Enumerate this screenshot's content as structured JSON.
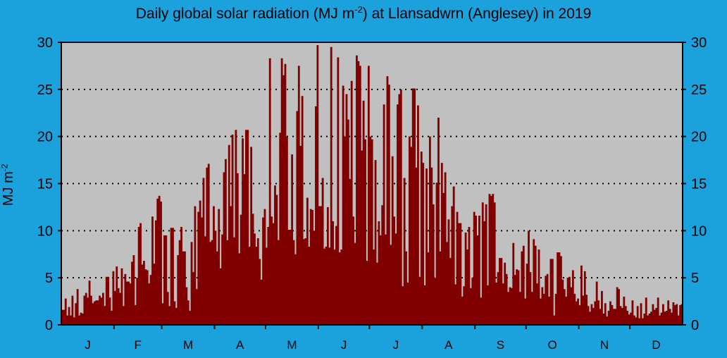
{
  "chart_data": {
    "type": "bar",
    "title_main": "Daily global solar radiation (MJ m",
    "title_sup": "-2",
    "title_rest": ") at Llansadwrn (Anglesey) in 2019",
    "ylabel_main": "MJ m",
    "ylabel_sup": "-2",
    "ylim": [
      0,
      30
    ],
    "yticks": [
      0,
      5,
      10,
      15,
      20,
      25,
      30
    ],
    "grid": "horizontal dotted",
    "months": [
      "J",
      "F",
      "M",
      "A",
      "M",
      "J",
      "J",
      "A",
      "S",
      "O",
      "N",
      "D"
    ],
    "month_days": [
      31,
      28,
      31,
      30,
      31,
      30,
      31,
      31,
      30,
      31,
      30,
      31
    ],
    "bar_color": "#800000",
    "plot_bg": "#c0c0c0",
    "page_bg": "#1ba1db",
    "values": [
      1.6,
      1.6,
      2.8,
      1.0,
      1.9,
      1.0,
      3.1,
      0.8,
      2.3,
      3.8,
      1.0,
      1.3,
      1.2,
      3.1,
      3.4,
      2.9,
      4.7,
      3.1,
      2.3,
      2.5,
      2.6,
      2.6,
      3.1,
      2.9,
      3.4,
      2.0,
      5.1,
      5.1,
      2.9,
      1.5,
      5.7,
      3.6,
      6.2,
      3.9,
      3.4,
      6.0,
      2.0,
      5.4,
      4.6,
      4.6,
      4.4,
      6.7,
      7.4,
      2.1,
      5.0,
      10.4,
      10.8,
      6.4,
      6.8,
      5.9,
      5.8,
      4.4,
      5.3,
      11.5,
      6.5,
      11.1,
      13.4,
      13.7,
      13.1,
      2.3,
      9.5,
      9.5,
      3.5,
      2.0,
      10.3,
      10.3,
      2.5,
      1.8,
      7.4,
      9.0,
      10.4,
      7.8,
      7.8,
      4.0,
      2.6,
      1.5,
      8.8,
      5.6,
      12.6,
      3.8,
      12.0,
      13.2,
      11.4,
      15.6,
      9.4,
      16.7,
      17.1,
      8.8,
      9.0,
      12.6,
      10.0,
      7.8,
      12.3,
      6.0,
      9.6,
      16.2,
      17.6,
      9.0,
      19.1,
      12.6,
      20.2,
      9.3,
      20.7,
      16.1,
      7.6,
      11.7,
      19.8,
      16.0,
      20.7,
      20.7,
      8.3,
      18.9,
      11.8,
      9.7,
      8.3,
      9.2,
      7.0,
      4.8,
      11.4,
      12.3,
      8.2,
      10.4,
      28.3,
      11.5,
      10.8,
      14.8,
      13.8,
      9.0,
      20.4,
      28.3,
      26.5,
      27.7,
      20.0,
      10.1,
      10.1,
      18.1,
      9.0,
      7.5,
      22.7,
      27.5,
      19.0,
      24.3,
      9.1,
      9.2,
      13.5,
      8.3,
      12.3,
      12.2,
      10.0,
      23.2,
      29.7,
      12.6,
      12.6,
      15.6,
      8.1,
      8.3,
      12.5,
      8.2,
      29.5,
      11.0,
      8.0,
      10.5,
      28.4,
      7.7,
      8.0,
      25.4,
      20.0,
      24.5,
      21.8,
      15.5,
      25.9,
      11.5,
      8.7,
      28.6,
      28.0,
      27.5,
      18.5,
      23.8,
      19.7,
      6.8,
      27.5,
      20.0,
      19.7,
      8.0,
      17.5,
      6.6,
      11.0,
      9.5,
      12.7,
      23.4,
      9.6,
      26.4,
      25.5,
      8.5,
      17.9,
      11.5,
      9.7,
      23.4,
      24.5,
      25.0,
      4.1,
      15.6,
      7.8,
      4.5,
      20.0,
      18.9,
      25.1,
      25.1,
      16.7,
      23.3,
      5.1,
      18.4,
      17.2,
      4.2,
      16.6,
      7.7,
      20.0,
      16.7,
      12.8,
      5.0,
      15.1,
      22.0,
      7.8,
      17.2,
      14.0,
      16.2,
      8.8,
      11.2,
      7.1,
      12.6,
      14.7,
      4.3,
      12.0,
      10.8,
      10.8,
      3.0,
      4.1,
      9.8,
      8.0,
      10.4,
      3.9,
      5.0,
      12.0,
      11.6,
      9.5,
      11.6,
      2.9,
      13.0,
      11.0,
      12.8,
      4.2,
      13.9,
      13.7,
      13.9,
      13.0,
      4.5,
      5.6,
      7.1,
      7.1,
      4.4,
      6.6,
      5.4,
      3.5,
      4.0,
      3.9,
      8.7,
      5.3,
      5.9,
      5.8,
      3.5,
      7.8,
      8.4,
      2.8,
      6.5,
      10.0,
      5.6,
      3.5,
      9.1,
      8.4,
      4.4,
      8.0,
      2.8,
      4.0,
      3.3,
      5.2,
      5.4,
      3.0,
      7.0,
      7.0,
      1.0,
      3.3,
      7.7,
      7.7,
      7.3,
      4.8,
      3.8,
      3.0,
      5.0,
      5.1,
      4.0,
      5.8,
      3.3,
      2.5,
      2.8,
      2.1,
      6.3,
      3.1,
      5.7,
      3.2,
      2.0,
      1.4,
      2.2,
      1.8,
      2.5,
      4.6,
      2.6,
      1.7,
      3.6,
      1.2,
      2.3,
      0.9,
      1.5,
      2.5,
      2.1,
      1.7,
      1.7,
      4.0,
      3.8,
      2.0,
      1.8,
      3.0,
      2.0,
      1.5,
      1.1,
      1.3,
      2.6,
      1.0,
      0.8,
      2.0,
      0.7,
      2.3,
      0.7,
      1.2,
      2.9,
      1.0,
      1.2,
      1.4,
      2.2,
      1.6,
      1.8,
      2.9,
      1.0,
      1.3,
      2.2,
      1.4,
      1.5,
      2.6,
      1.7,
      1.3,
      2.4,
      2.1,
      2.2,
      1.0,
      2.1,
      2.2
    ]
  }
}
